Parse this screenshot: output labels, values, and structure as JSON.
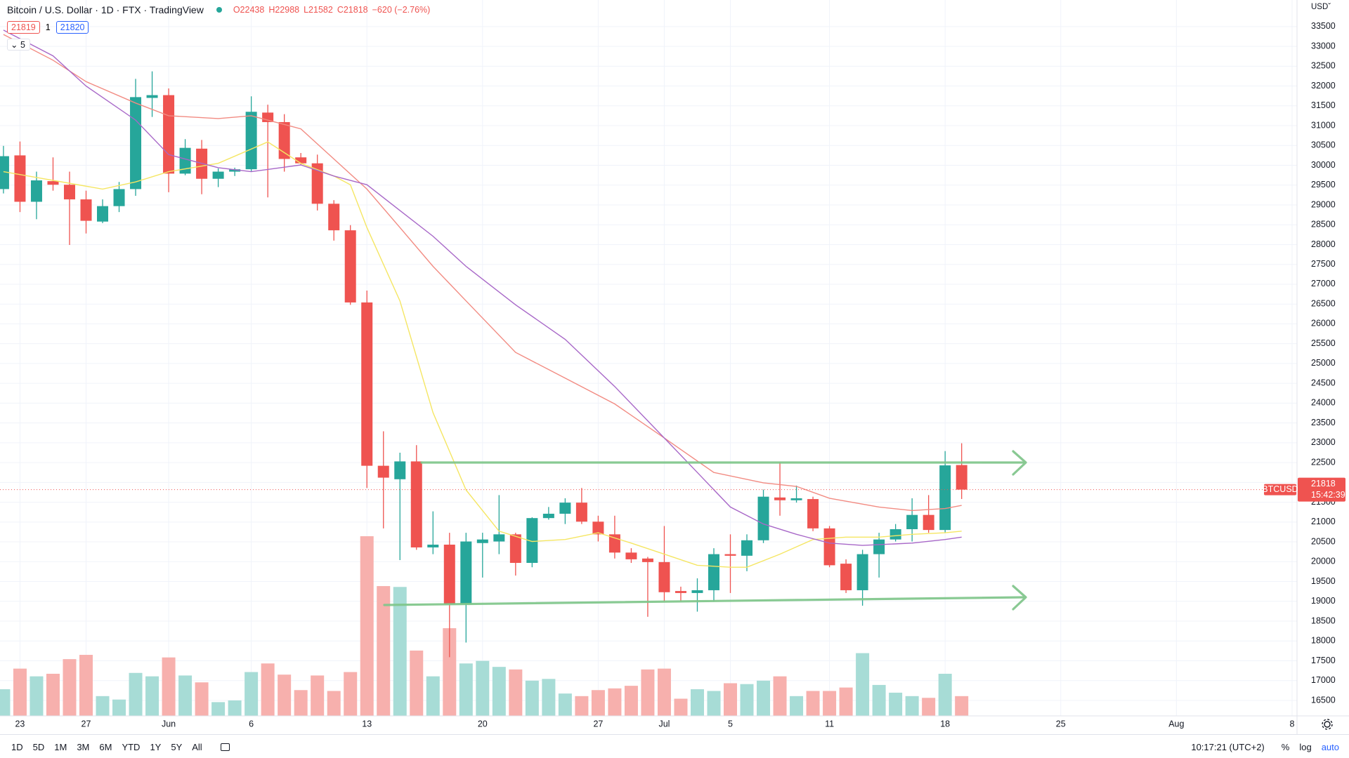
{
  "chart_data": {
    "type": "candlestick",
    "title": "Bitcoin / U.S. Dollar · 1D · FTX · TradingView",
    "legend_values": [
      "O22438",
      "H22988",
      "L21582",
      "C21818",
      "−620 (−2.76%)"
    ],
    "currency": "USD",
    "open": [
      29400,
      30250,
      29080,
      29600,
      29510,
      29140,
      28580,
      28970,
      29400,
      31700,
      31770,
      29790,
      30420,
      29660,
      29840,
      29900,
      31330,
      31090,
      30200,
      30050,
      29030,
      28360,
      26540,
      22420,
      22080,
      22530,
      20360,
      20430,
      18930,
      20470,
      20510,
      20690,
      19970,
      21100,
      21210,
      21490,
      21010,
      20690,
      20230,
      20080,
      19990,
      19260,
      19210,
      19280,
      20190,
      20150,
      20540,
      21620,
      21550,
      21580,
      20840,
      19950,
      19280,
      20190,
      20560,
      20820,
      21180,
      20800,
      22438
    ],
    "high": [
      30490,
      30600,
      29840,
      30200,
      29840,
      29360,
      29140,
      29580,
      32180,
      32370,
      31940,
      30660,
      30640,
      29920,
      29940,
      31740,
      31530,
      31290,
      30310,
      30270,
      29120,
      28490,
      26840,
      23290,
      22750,
      22940,
      21270,
      20730,
      20730,
      20730,
      21680,
      20730,
      21120,
      21380,
      21600,
      21860,
      21160,
      21160,
      20340,
      20120,
      20900,
      19370,
      19580,
      20340,
      20690,
      20690,
      21820,
      22510,
      21920,
      21640,
      20900,
      20060,
      20300,
      20730,
      20950,
      21600,
      21680,
      22790,
      22988
    ],
    "low": [
      29290,
      28820,
      28640,
      29360,
      27990,
      28280,
      28540,
      28820,
      29230,
      31220,
      29320,
      29750,
      29270,
      29450,
      29730,
      29840,
      29190,
      29840,
      30010,
      28860,
      28100,
      26480,
      21860,
      20840,
      20040,
      20300,
      20190,
      17590,
      17960,
      19600,
      20190,
      19650,
      19860,
      21060,
      20950,
      20950,
      20510,
      20080,
      19970,
      18610,
      19000,
      19000,
      18740,
      19000,
      19210,
      19760,
      20470,
      21160,
      21490,
      20770,
      19860,
      19210,
      18890,
      19600,
      20510,
      20510,
      20730,
      20730,
      21582
    ],
    "close": [
      30230,
      29080,
      29620,
      29510,
      29140,
      28600,
      28970,
      29400,
      31720,
      31770,
      29790,
      30440,
      29660,
      29840,
      29900,
      31350,
      31090,
      30160,
      30050,
      29030,
      28360,
      26540,
      22420,
      22120,
      22530,
      20360,
      20430,
      18930,
      20510,
      20560,
      20690,
      19970,
      21100,
      21210,
      21490,
      21010,
      20690,
      20230,
      20060,
      19990,
      19230,
      19210,
      19280,
      20190,
      20150,
      20540,
      21640,
      21550,
      21600,
      20840,
      19910,
      19280,
      20190,
      20560,
      20820,
      21180,
      20800,
      22430,
      21818
    ],
    "volume": [
      31,
      55,
      46,
      49,
      66,
      71,
      23,
      19,
      50,
      46,
      68,
      47,
      39,
      16,
      18,
      51,
      61,
      48,
      30,
      47,
      29,
      51,
      209,
      151,
      150,
      76,
      46,
      102,
      61,
      64,
      57,
      54,
      41,
      43,
      26,
      23,
      30,
      32,
      35,
      54,
      55,
      20,
      31,
      29,
      38,
      37,
      41,
      46,
      23,
      29,
      29,
      33,
      73,
      36,
      27,
      23,
      21,
      49,
      23
    ],
    "colors": {
      "up": "#26a69a",
      "down": "#ef5350",
      "volume_up": "#a7dcd6",
      "volume_down": "#f7b0ad"
    },
    "moving_averages": [
      {
        "color": "#f5e663",
        "x": [
          0,
          3,
          6,
          8,
          10,
          13,
          16,
          18,
          20,
          21,
          22,
          24,
          26,
          28,
          30,
          32,
          34,
          36,
          38,
          40,
          42,
          44,
          45,
          47,
          49,
          51,
          53,
          55,
          57,
          58
        ],
        "values": [
          29840,
          29620,
          29400,
          29580,
          29840,
          30050,
          30590,
          30050,
          29730,
          29510,
          28430,
          26580,
          23760,
          21810,
          20770,
          20510,
          20560,
          20730,
          20470,
          20190,
          19910,
          19860,
          19860,
          20190,
          20560,
          20620,
          20620,
          20690,
          20730,
          20770
        ]
      },
      {
        "color": "#f28b82",
        "x": [
          0,
          3,
          5,
          8,
          10,
          13,
          15,
          18,
          20,
          22,
          24,
          26,
          28,
          31,
          34,
          37,
          40,
          43,
          46,
          48,
          50,
          53,
          55,
          57,
          58
        ],
        "values": [
          33300,
          32650,
          32110,
          31570,
          31250,
          31180,
          31250,
          30920,
          30160,
          29400,
          28430,
          27450,
          26580,
          25280,
          24630,
          23980,
          23120,
          22250,
          21990,
          21900,
          21600,
          21380,
          21290,
          21340,
          21420
        ]
      },
      {
        "color": "#a868c8",
        "x": [
          0,
          3,
          5,
          8,
          10,
          13,
          15,
          18,
          20,
          22,
          24,
          26,
          28,
          31,
          34,
          37,
          40,
          42,
          44,
          46,
          48,
          50,
          52,
          55,
          57,
          58
        ],
        "values": [
          33410,
          32760,
          32000,
          31140,
          30270,
          29940,
          29840,
          30010,
          29730,
          29510,
          28860,
          28210,
          27450,
          26480,
          25610,
          24420,
          23120,
          22250,
          21380,
          20950,
          20690,
          20470,
          20410,
          20470,
          20560,
          20620
        ]
      }
    ],
    "ylim": [
      16110,
      34170
    ],
    "yticks": [
      16500,
      17000,
      17500,
      18000,
      18500,
      19000,
      19500,
      20000,
      20500,
      21000,
      21500,
      22000,
      22500,
      23000,
      23500,
      24000,
      24500,
      25000,
      25500,
      26000,
      26500,
      27000,
      27500,
      28000,
      28500,
      29000,
      29500,
      30000,
      30500,
      31000,
      31500,
      32000,
      32500,
      33000,
      33500
    ],
    "xlim": [
      -0.21,
      78.3
    ],
    "xticks": [
      {
        "value": 1,
        "label": "23"
      },
      {
        "value": 5,
        "label": "27"
      },
      {
        "value": 10,
        "label": "Jun"
      },
      {
        "value": 15,
        "label": "6"
      },
      {
        "value": 22,
        "label": "13"
      },
      {
        "value": 29,
        "label": "20"
      },
      {
        "value": 36,
        "label": "27"
      },
      {
        "value": 40,
        "label": "Jul"
      },
      {
        "value": 44,
        "label": "5"
      },
      {
        "value": 50,
        "label": "11"
      },
      {
        "value": 57,
        "label": "18"
      },
      {
        "value": 64,
        "label": "25"
      },
      {
        "value": 71,
        "label": "Aug"
      },
      {
        "value": 78,
        "label": "8"
      }
    ],
    "grid": true,
    "last_price": {
      "symbol": "BTCUSD",
      "value": 21818,
      "countdown": "15:42:39"
    }
  },
  "order_panel": {
    "sell": "21819",
    "quantity": "1",
    "buy": "21820"
  },
  "indicators_count": "5",
  "toolbar": {
    "intervals": [
      "1D",
      "5D",
      "1M",
      "3M",
      "6M",
      "YTD",
      "1Y",
      "5Y",
      "All"
    ],
    "clock": "10:17:21 (UTC+2)",
    "options": [
      "%",
      "log",
      "auto"
    ]
  }
}
